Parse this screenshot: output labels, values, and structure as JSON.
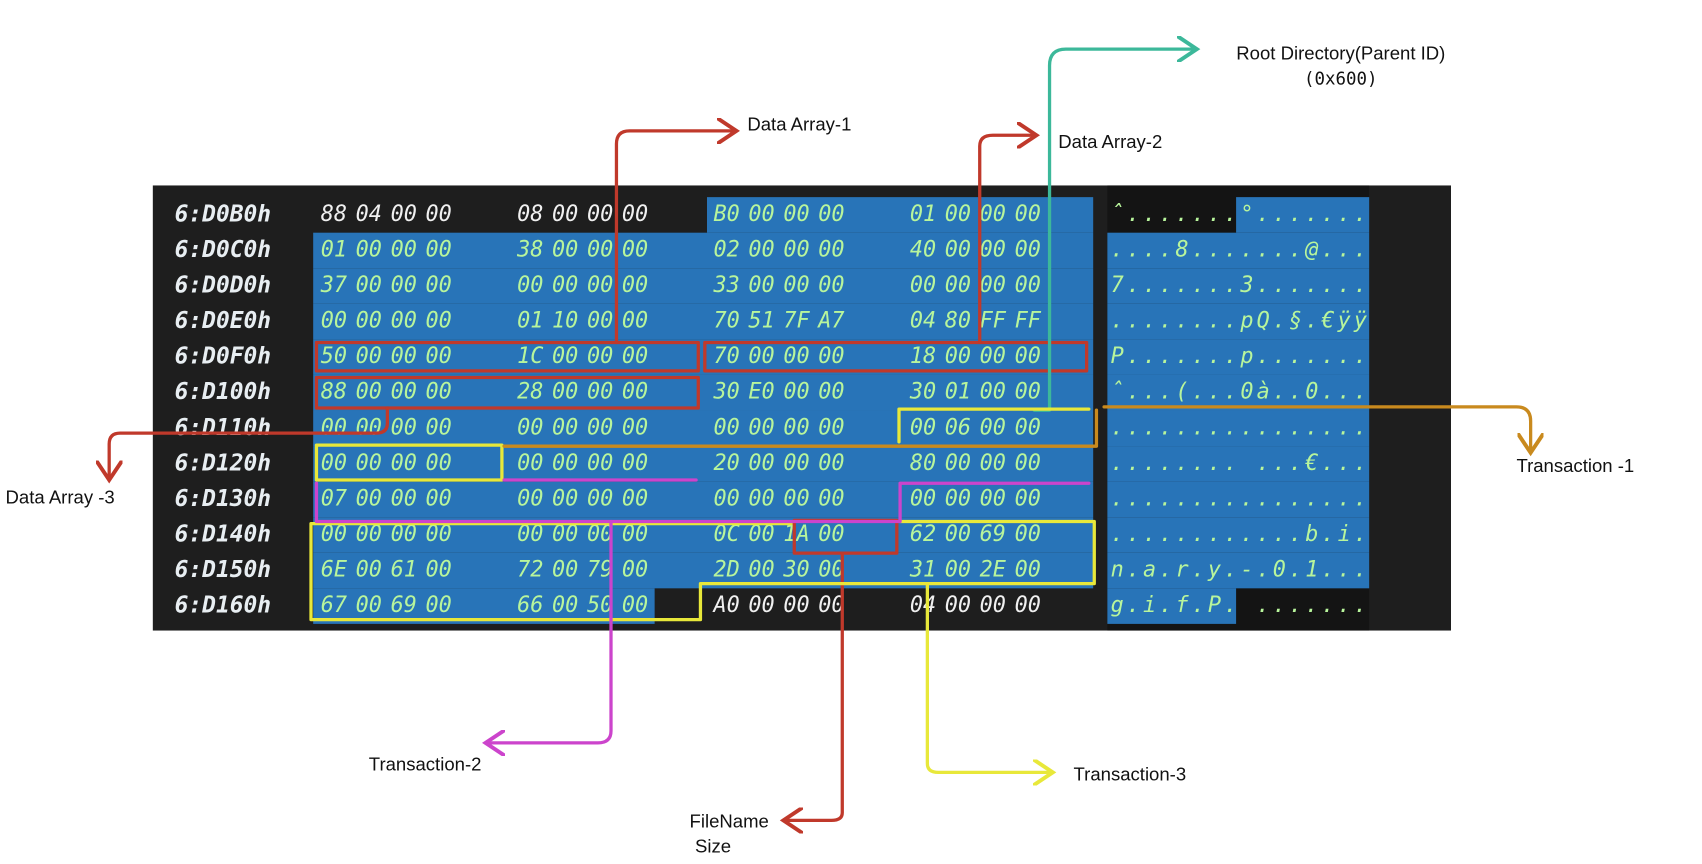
{
  "hex_view": {
    "rows": [
      {
        "address": "6:D0B0h",
        "bytes": [
          "88",
          "04",
          "00",
          "00",
          "08",
          "00",
          "00",
          "00",
          "B0",
          "00",
          "00",
          "00",
          "01",
          "00",
          "00",
          "00"
        ],
        "ascii": "ˆ.......°......."
      },
      {
        "address": "6:D0C0h",
        "bytes": [
          "01",
          "00",
          "00",
          "00",
          "38",
          "00",
          "00",
          "00",
          "02",
          "00",
          "00",
          "00",
          "40",
          "00",
          "00",
          "00"
        ],
        "ascii": "....8.......@..."
      },
      {
        "address": "6:D0D0h",
        "bytes": [
          "37",
          "00",
          "00",
          "00",
          "00",
          "00",
          "00",
          "00",
          "33",
          "00",
          "00",
          "00",
          "00",
          "00",
          "00",
          "00"
        ],
        "ascii": "7.......3......."
      },
      {
        "address": "6:D0E0h",
        "bytes": [
          "00",
          "00",
          "00",
          "00",
          "01",
          "10",
          "00",
          "00",
          "70",
          "51",
          "7F",
          "A7",
          "04",
          "80",
          "FF",
          "FF"
        ],
        "ascii": "........pQ.§.€ÿÿ"
      },
      {
        "address": "6:D0F0h",
        "bytes": [
          "50",
          "00",
          "00",
          "00",
          "1C",
          "00",
          "00",
          "00",
          "70",
          "00",
          "00",
          "00",
          "18",
          "00",
          "00",
          "00"
        ],
        "ascii": "P.......p......."
      },
      {
        "address": "6:D100h",
        "bytes": [
          "88",
          "00",
          "00",
          "00",
          "28",
          "00",
          "00",
          "00",
          "30",
          "E0",
          "00",
          "00",
          "30",
          "01",
          "00",
          "00"
        ],
        "ascii": "ˆ...(...0à..0..."
      },
      {
        "address": "6:D110h",
        "bytes": [
          "00",
          "00",
          "00",
          "00",
          "00",
          "00",
          "00",
          "00",
          "00",
          "00",
          "00",
          "00",
          "00",
          "06",
          "00",
          "00"
        ],
        "ascii": "................"
      },
      {
        "address": "6:D120h",
        "bytes": [
          "00",
          "00",
          "00",
          "00",
          "00",
          "00",
          "00",
          "00",
          "20",
          "00",
          "00",
          "00",
          "80",
          "00",
          "00",
          "00"
        ],
        "ascii": "........ ...€..."
      },
      {
        "address": "6:D130h",
        "bytes": [
          "07",
          "00",
          "00",
          "00",
          "00",
          "00",
          "00",
          "00",
          "00",
          "00",
          "00",
          "00",
          "00",
          "00",
          "00",
          "00"
        ],
        "ascii": "................"
      },
      {
        "address": "6:D140h",
        "bytes": [
          "00",
          "00",
          "00",
          "00",
          "00",
          "00",
          "00",
          "00",
          "0C",
          "00",
          "1A",
          "00",
          "62",
          "00",
          "69",
          "00"
        ],
        "ascii": "............b.i."
      },
      {
        "address": "6:D150h",
        "bytes": [
          "6E",
          "00",
          "61",
          "00",
          "72",
          "00",
          "79",
          "00",
          "2D",
          "00",
          "30",
          "00",
          "31",
          "00",
          "2E",
          "00"
        ],
        "ascii": "n.a.r.y.-.0.1..."
      },
      {
        "address": "6:D160h",
        "bytes": [
          "67",
          "00",
          "69",
          "00",
          "66",
          "00",
          "50",
          "00",
          "A0",
          "00",
          "00",
          "00",
          "04",
          "00",
          "00",
          "00"
        ],
        "ascii": "g.i.f.P. ......."
      }
    ]
  },
  "annotations": [
    {
      "lines": [
        "Data Array-1"
      ]
    },
    {
      "lines": [
        "Data Array-2"
      ]
    },
    {
      "lines": [
        "Root Directory(Parent ID)",
        "(0x600)"
      ]
    },
    {
      "lines": [
        "Transaction -1"
      ]
    },
    {
      "lines": [
        "Data Array -3"
      ]
    },
    {
      "lines": [
        "Transaction-2"
      ]
    },
    {
      "lines": [
        "FileName",
        "Size"
      ]
    },
    {
      "lines": [
        "Transaction-3"
      ]
    }
  ]
}
